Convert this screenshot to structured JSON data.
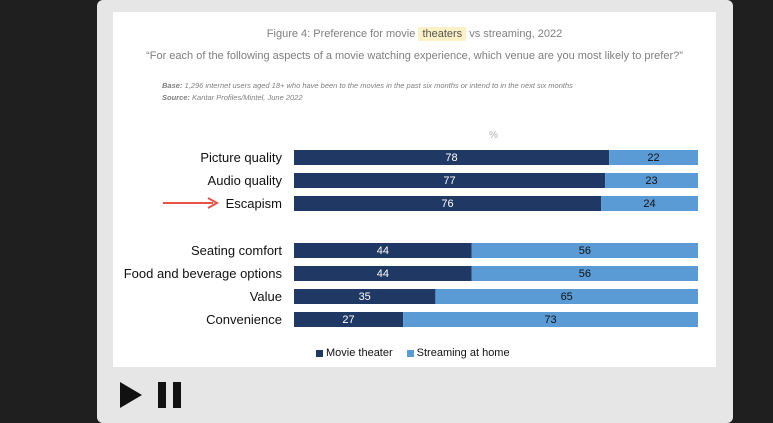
{
  "figure": {
    "title_prefix": "Figure 4: Preference for movie",
    "title_highlight": "theaters",
    "title_suffix": "vs streaming, 2022",
    "question": "“For each of the following aspects of a movie watching experience, which venue are you most likely to prefer?”",
    "base_label": "Base:",
    "base_text": "1,296 internet users aged 18+ who have been to the movies in the past six months or intend to in the next six months",
    "source_label": "Source:",
    "source_text": "Kantar Profiles/Mintel, June 2022",
    "unit": "%"
  },
  "colors": {
    "movie_theater": "#1f3864",
    "streaming": "#5b9bd5",
    "arrow": "#e8524a"
  },
  "chart_data": {
    "type": "bar",
    "orientation": "horizontal-stacked-100",
    "categories": [
      "Picture quality",
      "Audio quality",
      "Escapism",
      "Seating comfort",
      "Food and beverage options",
      "Value",
      "Convenience"
    ],
    "series": [
      {
        "name": "Movie theater",
        "values": [
          78,
          77,
          76,
          44,
          44,
          35,
          27
        ]
      },
      {
        "name": "Streaming at home",
        "values": [
          22,
          23,
          24,
          56,
          56,
          65,
          73
        ]
      }
    ],
    "highlighted_category": "Escapism",
    "ylabel": "%",
    "xlim": [
      0,
      100
    ],
    "legend_position": "bottom"
  },
  "legend": [
    "Movie theater",
    "Streaming at home"
  ],
  "player": {
    "play_icon": "play-icon",
    "pause_icon": "pause-icon"
  }
}
